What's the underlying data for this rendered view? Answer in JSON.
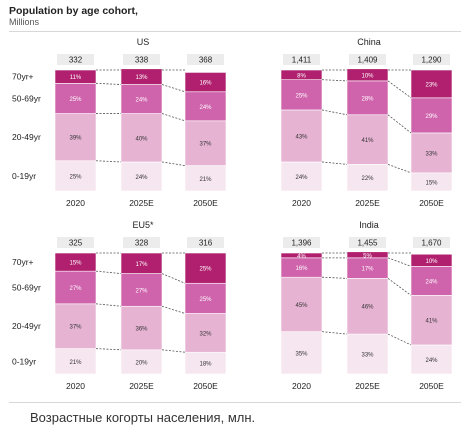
{
  "header": {
    "title": "Population by age cohort,",
    "subtitle": "Millions"
  },
  "caption": "Возрастные когорты населения, млн.",
  "colors": {
    "seg_0_19": "#f6e6f0",
    "seg_20_49": "#e6b3d3",
    "seg_50_69": "#cf63ac",
    "seg_70_plus": "#b0206f",
    "connector": "#555555",
    "total_tag": "#ececec"
  },
  "chart_data": [
    {
      "type": "bar",
      "stacked": "percent",
      "title": "US",
      "categories": [
        "2020",
        "2025E",
        "2050E"
      ],
      "totals": [
        "332",
        "338",
        "368"
      ],
      "segment_labels": [
        "0-19yr",
        "20-49yr",
        "50-69yr",
        "70yr+"
      ],
      "series": [
        {
          "name": "0-19yr",
          "values": [
            25,
            24,
            21
          ]
        },
        {
          "name": "20-49yr",
          "values": [
            39,
            40,
            37
          ]
        },
        {
          "name": "50-69yr",
          "values": [
            25,
            24,
            24
          ]
        },
        {
          "name": "70yr+",
          "values": [
            11,
            13,
            16
          ]
        }
      ]
    },
    {
      "type": "bar",
      "stacked": "percent",
      "title": "China",
      "categories": [
        "2020",
        "2025E",
        "2050E"
      ],
      "totals": [
        "1,411",
        "1,409",
        "1,290"
      ],
      "series": [
        {
          "name": "0-19yr",
          "values": [
            24,
            22,
            15
          ]
        },
        {
          "name": "20-49yr",
          "values": [
            43,
            41,
            33
          ]
        },
        {
          "name": "50-69yr",
          "values": [
            25,
            28,
            29
          ]
        },
        {
          "name": "70yr+",
          "values": [
            8,
            10,
            23
          ]
        }
      ]
    },
    {
      "type": "bar",
      "stacked": "percent",
      "title": "EU5*",
      "categories": [
        "2020",
        "2025E",
        "2050E"
      ],
      "totals": [
        "325",
        "328",
        "316"
      ],
      "segment_labels": [
        "0-19yr",
        "20-49yr",
        "50-69yr",
        "70yr+"
      ],
      "series": [
        {
          "name": "0-19yr",
          "values": [
            21,
            20,
            18
          ]
        },
        {
          "name": "20-49yr",
          "values": [
            37,
            36,
            32
          ]
        },
        {
          "name": "50-69yr",
          "values": [
            27,
            27,
            25
          ]
        },
        {
          "name": "70yr+",
          "values": [
            15,
            17,
            25
          ]
        }
      ]
    },
    {
      "type": "bar",
      "stacked": "percent",
      "title": "India",
      "categories": [
        "2020",
        "2025E",
        "2050E"
      ],
      "totals": [
        "1,396",
        "1,455",
        "1,670"
      ],
      "series": [
        {
          "name": "0-19yr",
          "values": [
            35,
            33,
            24
          ]
        },
        {
          "name": "20-49yr",
          "values": [
            45,
            46,
            41
          ]
        },
        {
          "name": "50-69yr",
          "values": [
            16,
            17,
            24
          ]
        },
        {
          "name": "70yr+",
          "values": [
            4,
            5,
            10
          ]
        }
      ]
    }
  ]
}
